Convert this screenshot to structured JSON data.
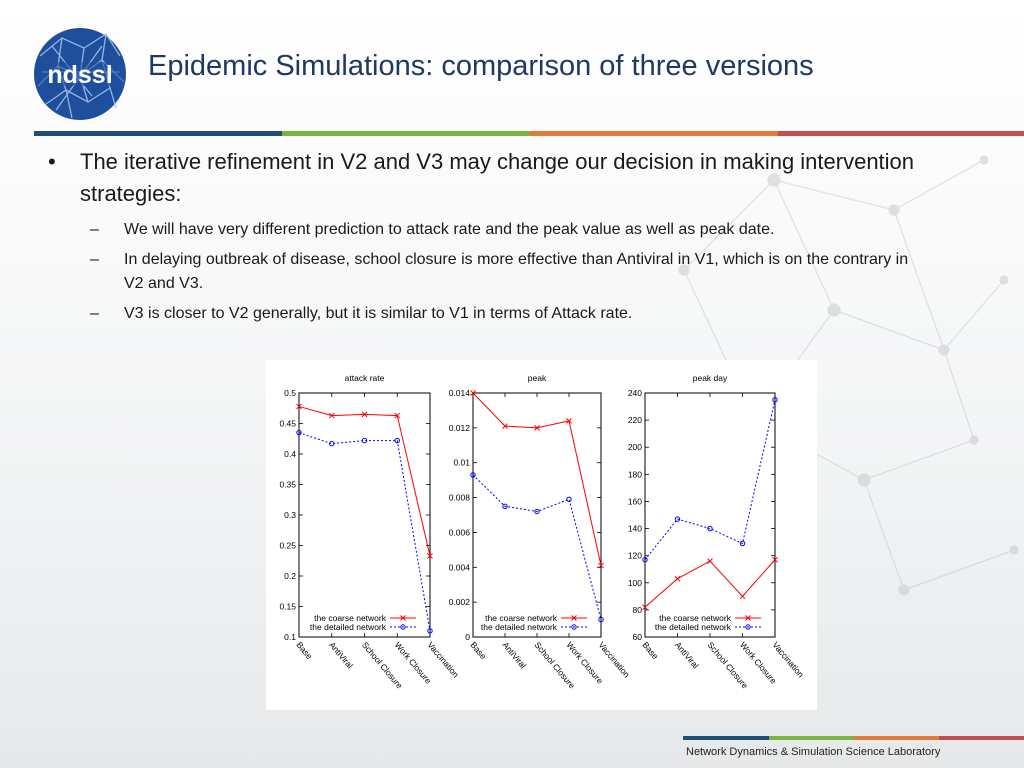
{
  "title": "Epidemic Simulations: comparison of three versions",
  "logo_text": "ndssl",
  "colors": {
    "title": "#1f3864",
    "divider": [
      "#1f4e79",
      "#7cb342",
      "#e07b39",
      "#c0504d"
    ],
    "coarse": "#ff0000",
    "detailed": "#0000ff"
  },
  "bullets": [
    {
      "text": "The iterative refinement in V2 and V3 may change our decision in making intervention strategies:",
      "subs": [
        "We will have very different prediction to attack rate and the peak value as well as peak date.",
        "In delaying outbreak of disease, school closure is more effective than Antiviral in V1, which is on the contrary in V2 and V3.",
        "V3 is closer to V2 generally, but it is similar to V1 in terms of Attack rate."
      ]
    }
  ],
  "footer": "Network Dynamics & Simulation Science Laboratory",
  "chart_data": [
    {
      "type": "line",
      "title": "attack rate",
      "categories": [
        "Base",
        "AntiViral",
        "School Closure",
        "Work Closure",
        "Vaccination"
      ],
      "ylim": [
        0.1,
        0.5
      ],
      "yticks": [
        "0.1",
        "0.15",
        "0.2",
        "0.25",
        "0.3",
        "0.35",
        "0.4",
        "0.45",
        "0.5"
      ],
      "series": [
        {
          "name": "the coarse network",
          "values": [
            0.478,
            0.463,
            0.465,
            0.463,
            0.233
          ]
        },
        {
          "name": "the detailed network",
          "values": [
            0.435,
            0.417,
            0.422,
            0.422,
            0.11
          ]
        }
      ]
    },
    {
      "type": "line",
      "title": "peak",
      "categories": [
        "Base",
        "AntiViral",
        "School Closure",
        "Work Closure",
        "Vaccination"
      ],
      "ylim": [
        0,
        0.014
      ],
      "yticks": [
        "0",
        "0.002",
        "0.004",
        "0.006",
        "0.008",
        "0.01",
        "0.012",
        "0.014"
      ],
      "series": [
        {
          "name": "the coarse network",
          "values": [
            0.014,
            0.0121,
            0.012,
            0.0124,
            0.0041
          ]
        },
        {
          "name": "the detailed network",
          "values": [
            0.0093,
            0.0075,
            0.0072,
            0.0079,
            0.001
          ]
        }
      ]
    },
    {
      "type": "line",
      "title": "peak day",
      "categories": [
        "Base",
        "AntiViral",
        "School Closure",
        "Work Closure",
        "Vaccination"
      ],
      "ylim": [
        60,
        240
      ],
      "yticks": [
        "60",
        "80",
        "100",
        "120",
        "140",
        "160",
        "180",
        "200",
        "220",
        "240"
      ],
      "series": [
        {
          "name": "the coarse network",
          "values": [
            82,
            103,
            116,
            90,
            117
          ]
        },
        {
          "name": "the detailed network",
          "values": [
            117,
            147,
            140,
            129,
            235
          ]
        }
      ]
    }
  ]
}
